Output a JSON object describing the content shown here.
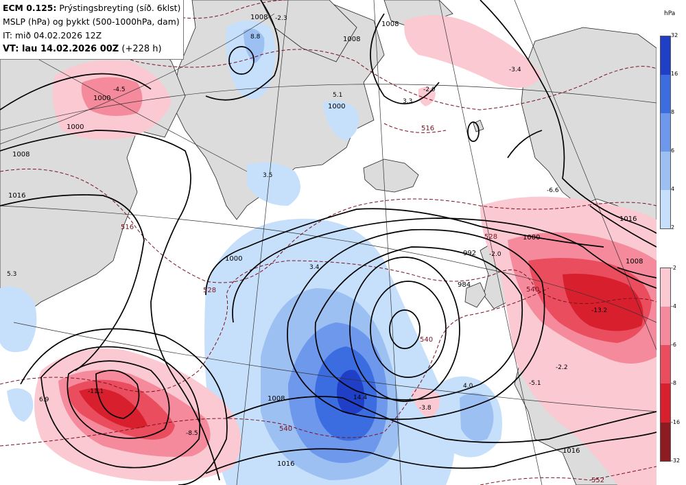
{
  "header": {
    "model": "ECM 0.125:",
    "parameter": "Prýstingsbreyting (síð. 6klst)",
    "line2": "MSLP (hPa) og þykkt (500-1000hPa, dam)",
    "init_time": "IT: mið 04.02.2026 12Z",
    "valid_prefix": "VT: lau 14.02.2026 00Z",
    "valid_suffix": "(+228 h)"
  },
  "legend": {
    "unit": "hPa",
    "rises": {
      "ticks": [
        "32",
        "16",
        "8",
        "6",
        "4",
        "2"
      ],
      "colors": [
        "#1f3fc7",
        "#3c6de0",
        "#6e98ec",
        "#9dc0f3",
        "#c6e0fb"
      ]
    },
    "falls": {
      "ticks": [
        "-2",
        "-4",
        "-6",
        "-8",
        "-16",
        "-32"
      ],
      "colors": [
        "#fbc9d2",
        "#f48a9c",
        "#ea4d5e",
        "#d81f2d",
        "#8c1c22"
      ]
    }
  },
  "isobar_labels": [
    "1008",
    "1016",
    "1008",
    "1000",
    "992",
    "984",
    "1000",
    "1000",
    "1008",
    "1016",
    "1016",
    "1008",
    "1000",
    "1016",
    "1000",
    "1008",
    "1008"
  ],
  "thickness_labels": [
    "516",
    "516",
    "528",
    "540",
    "528",
    "540",
    "540",
    "552"
  ],
  "value_labels": [
    "-4.5",
    "8.8",
    "-2.3",
    "-3.4",
    "-2.0",
    "3.3",
    "5.1",
    "3.5",
    "3.4",
    "5.3",
    "6.9",
    "-11.1",
    "-8.5",
    "14.4",
    "-3.8",
    "4.0",
    "-5.1",
    "-2.2",
    "-13.2",
    "-6.6",
    "-2.0"
  ]
}
